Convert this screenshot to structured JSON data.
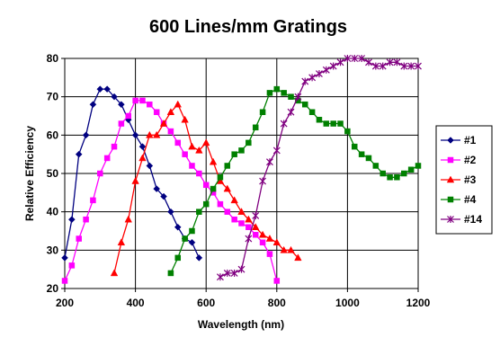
{
  "chart_data": {
    "type": "line",
    "title": "600 Lines/mm Gratings",
    "xlabel": "Wavelength (nm)",
    "ylabel": "Relative Efficiency",
    "xlim": [
      200,
      1200
    ],
    "ylim": [
      20,
      80
    ],
    "xticks": [
      200,
      400,
      600,
      800,
      1000,
      1200
    ],
    "yticks": [
      20,
      30,
      40,
      50,
      60,
      70,
      80
    ],
    "grid": true,
    "legend_position": "right",
    "series": [
      {
        "name": "#1",
        "color": "#000080",
        "marker": "diamond",
        "x": [
          200,
          220,
          240,
          260,
          280,
          300,
          320,
          340,
          360,
          380,
          400,
          420,
          440,
          460,
          480,
          500,
          520,
          540,
          560,
          580
        ],
        "y": [
          28,
          38,
          55,
          60,
          68,
          72,
          72,
          70,
          68,
          64,
          60,
          57,
          52,
          46,
          44,
          40,
          36,
          33,
          32,
          28
        ]
      },
      {
        "name": "#2",
        "color": "#ff00ff",
        "marker": "square",
        "x": [
          200,
          220,
          240,
          260,
          280,
          300,
          320,
          340,
          360,
          380,
          400,
          420,
          440,
          460,
          480,
          500,
          520,
          540,
          560,
          580,
          600,
          620,
          640,
          660,
          680,
          700,
          720,
          740,
          760,
          780,
          800
        ],
        "y": [
          22,
          26,
          33,
          38,
          43,
          50,
          54,
          57,
          63,
          65,
          69,
          69,
          68,
          66,
          63,
          61,
          58,
          55,
          52,
          50,
          47,
          45,
          42,
          40,
          38,
          37,
          36,
          34,
          32,
          29,
          22
        ]
      },
      {
        "name": "#3",
        "color": "#ff0000",
        "marker": "triangle",
        "x": [
          340,
          360,
          380,
          400,
          420,
          440,
          460,
          480,
          500,
          520,
          540,
          560,
          580,
          600,
          620,
          640,
          660,
          680,
          700,
          720,
          740,
          760,
          780,
          800,
          820,
          840,
          860
        ],
        "y": [
          24,
          32,
          38,
          48,
          54,
          60,
          60,
          63,
          66,
          68,
          64,
          57,
          56,
          58,
          53,
          48,
          46,
          43,
          40,
          38,
          36,
          34,
          33,
          32,
          30,
          30,
          28
        ]
      },
      {
        "name": "#4",
        "color": "#008000",
        "marker": "square",
        "x": [
          500,
          520,
          540,
          560,
          580,
          600,
          620,
          640,
          660,
          680,
          700,
          720,
          740,
          760,
          780,
          800,
          820,
          840,
          860,
          880,
          900,
          920,
          940,
          960,
          980,
          1000,
          1020,
          1040,
          1060,
          1080,
          1100,
          1120,
          1140,
          1160,
          1180,
          1200
        ],
        "y": [
          24,
          28,
          33,
          35,
          40,
          42,
          46,
          49,
          52,
          55,
          56,
          58,
          62,
          66,
          71,
          72,
          71,
          70,
          69,
          68,
          66,
          64,
          63,
          63,
          63,
          61,
          57,
          55,
          54,
          52,
          50,
          49,
          49,
          50,
          51,
          52
        ]
      },
      {
        "name": "#14",
        "color": "#800080",
        "marker": "star",
        "x": [
          640,
          660,
          680,
          700,
          720,
          740,
          760,
          780,
          800,
          820,
          840,
          860,
          880,
          900,
          920,
          940,
          960,
          980,
          1000,
          1020,
          1040,
          1060,
          1080,
          1100,
          1120,
          1140,
          1160,
          1180,
          1200
        ],
        "y": [
          23,
          24,
          24,
          25,
          33,
          39,
          48,
          53,
          56,
          63,
          66,
          70,
          74,
          75,
          76,
          77,
          78,
          79,
          80,
          80,
          80,
          79,
          78,
          78,
          79,
          79,
          78,
          78,
          78
        ]
      }
    ]
  }
}
